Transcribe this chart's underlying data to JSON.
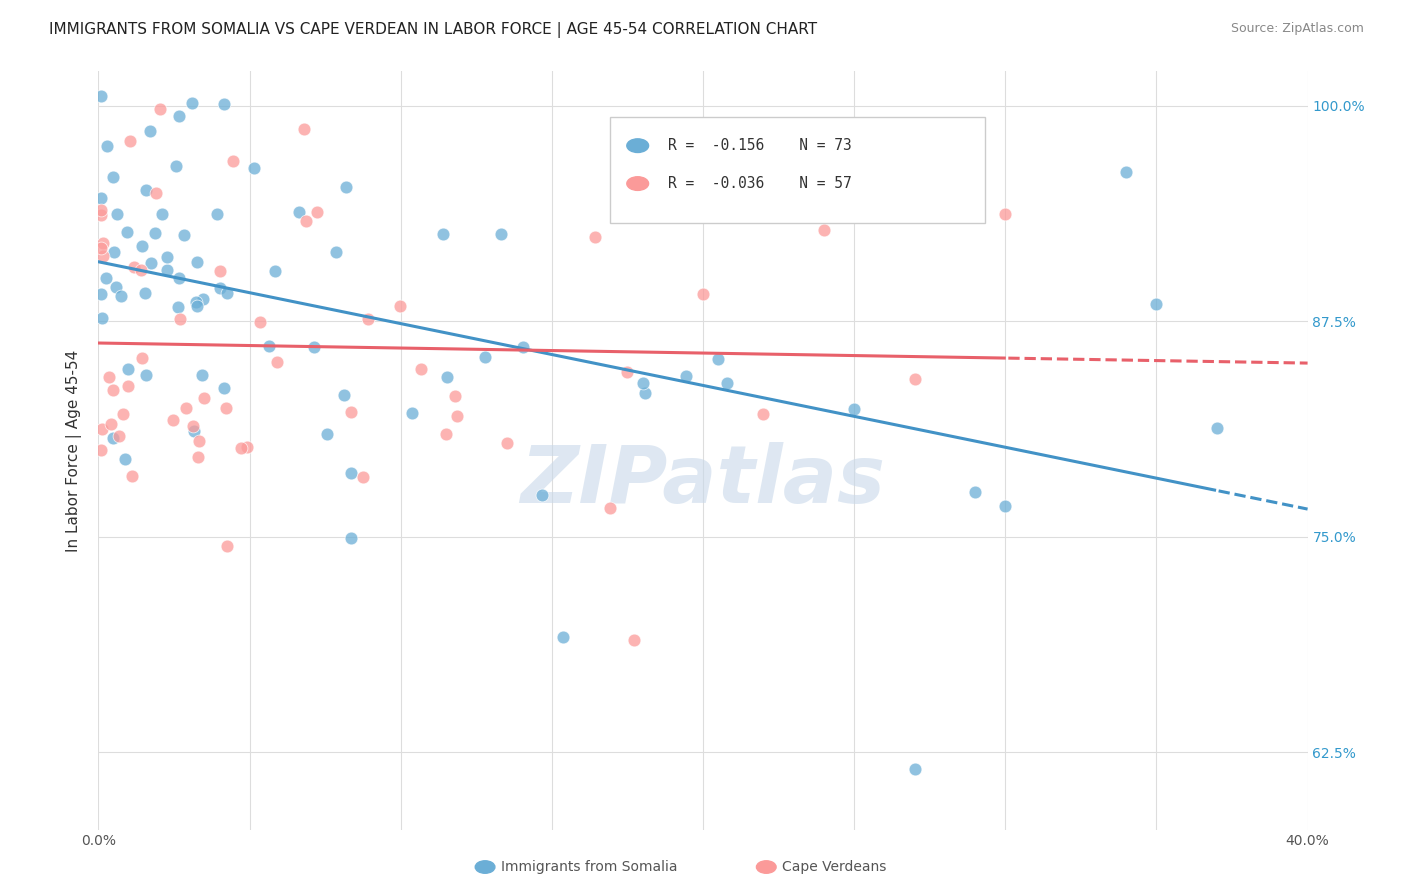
{
  "title": "IMMIGRANTS FROM SOMALIA VS CAPE VERDEAN IN LABOR FORCE | AGE 45-54 CORRELATION CHART",
  "source": "Source: ZipAtlas.com",
  "ylabel": "In Labor Force | Age 45-54",
  "x_min": 0.0,
  "x_max": 0.4,
  "y_min": 0.58,
  "y_max": 1.02,
  "x_tick_positions": [
    0.0,
    0.05,
    0.1,
    0.15,
    0.2,
    0.25,
    0.3,
    0.35,
    0.4
  ],
  "x_tick_labels": [
    "0.0%",
    "",
    "",
    "",
    "",
    "",
    "",
    "",
    "40.0%"
  ],
  "y_tick_positions": [
    0.625,
    0.75,
    0.875,
    1.0
  ],
  "y_tick_labels": [
    "62.5%",
    "75.0%",
    "87.5%",
    "100.0%"
  ],
  "somalia_color": "#6baed6",
  "somalia_color_line": "#4292c6",
  "cape_verdean_color": "#fb9a99",
  "cape_verdean_color_line": "#e8606a",
  "legend_R_somalia": "-0.156",
  "legend_N_somalia": "73",
  "legend_R_cape": "-0.036",
  "legend_N_cape": "57",
  "watermark_color": "#c8d8ea",
  "background_color": "#ffffff",
  "grid_color": "#dddddd"
}
